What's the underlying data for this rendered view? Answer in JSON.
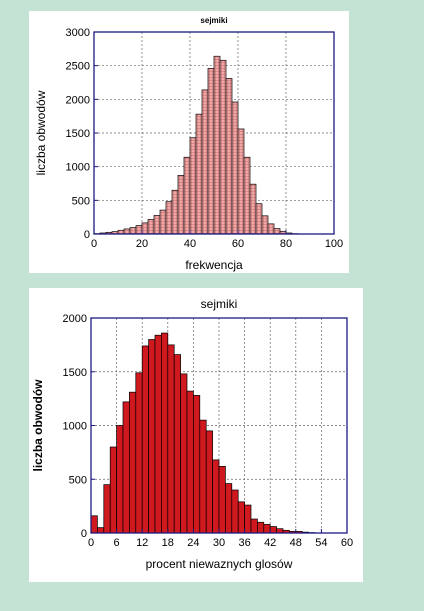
{
  "chart_data": [
    {
      "type": "bar",
      "title": "sejmiki",
      "xlabel": "frekwencja",
      "ylabel": "liczba obwodów",
      "xlim": [
        0,
        100
      ],
      "ylim": [
        0,
        3000
      ],
      "xticks": [
        0,
        20,
        40,
        60,
        80,
        100
      ],
      "yticks": [
        0,
        500,
        1000,
        1500,
        2000,
        2500,
        3000
      ],
      "grid": true,
      "bin_width": 2.5,
      "bin_starts": [
        0,
        2.5,
        5,
        7.5,
        10,
        12.5,
        15,
        17.5,
        20,
        22.5,
        25,
        27.5,
        30,
        32.5,
        35,
        37.5,
        40,
        42.5,
        45,
        47.5,
        50,
        52.5,
        55,
        57.5,
        60,
        62.5,
        65,
        67.5,
        70,
        72.5,
        75,
        77.5,
        80,
        82.5
      ],
      "values": [
        5,
        15,
        25,
        35,
        55,
        75,
        95,
        125,
        165,
        215,
        275,
        355,
        480,
        650,
        870,
        1140,
        1430,
        1780,
        2140,
        2460,
        2640,
        2580,
        2310,
        1960,
        1560,
        1140,
        740,
        450,
        270,
        150,
        80,
        40,
        15,
        5
      ],
      "colors": {
        "fill": "#f2a6a6",
        "stroke": "#000000",
        "axis": "#1a1a80"
      }
    },
    {
      "type": "bar",
      "title": "sejmiki",
      "xlabel": "procent niewaznych glosów",
      "ylabel": "liczba obwodów",
      "xlim": [
        0,
        60
      ],
      "ylim": [
        0,
        2000
      ],
      "xticks": [
        0,
        6,
        12,
        18,
        24,
        30,
        36,
        42,
        48,
        54,
        60
      ],
      "yticks": [
        0,
        500,
        1000,
        1500,
        2000
      ],
      "grid": true,
      "bin_width": 1.5,
      "bin_starts": [
        0,
        1.5,
        3,
        4.5,
        6,
        7.5,
        9,
        10.5,
        12,
        13.5,
        15,
        16.5,
        18,
        19.5,
        21,
        22.5,
        24,
        25.5,
        27,
        28.5,
        30,
        31.5,
        33,
        34.5,
        36,
        37.5,
        39,
        40.5,
        42,
        43.5,
        45,
        46.5,
        48,
        49.5,
        51
      ],
      "values": [
        160,
        50,
        450,
        800,
        1000,
        1220,
        1310,
        1490,
        1740,
        1800,
        1840,
        1860,
        1750,
        1660,
        1480,
        1320,
        1280,
        1050,
        950,
        680,
        620,
        460,
        400,
        290,
        260,
        130,
        100,
        80,
        60,
        40,
        25,
        15,
        15,
        8,
        4
      ],
      "colors": {
        "fill": "#d0181f",
        "stroke": "#000000",
        "axis": "#1a1a80"
      }
    }
  ]
}
